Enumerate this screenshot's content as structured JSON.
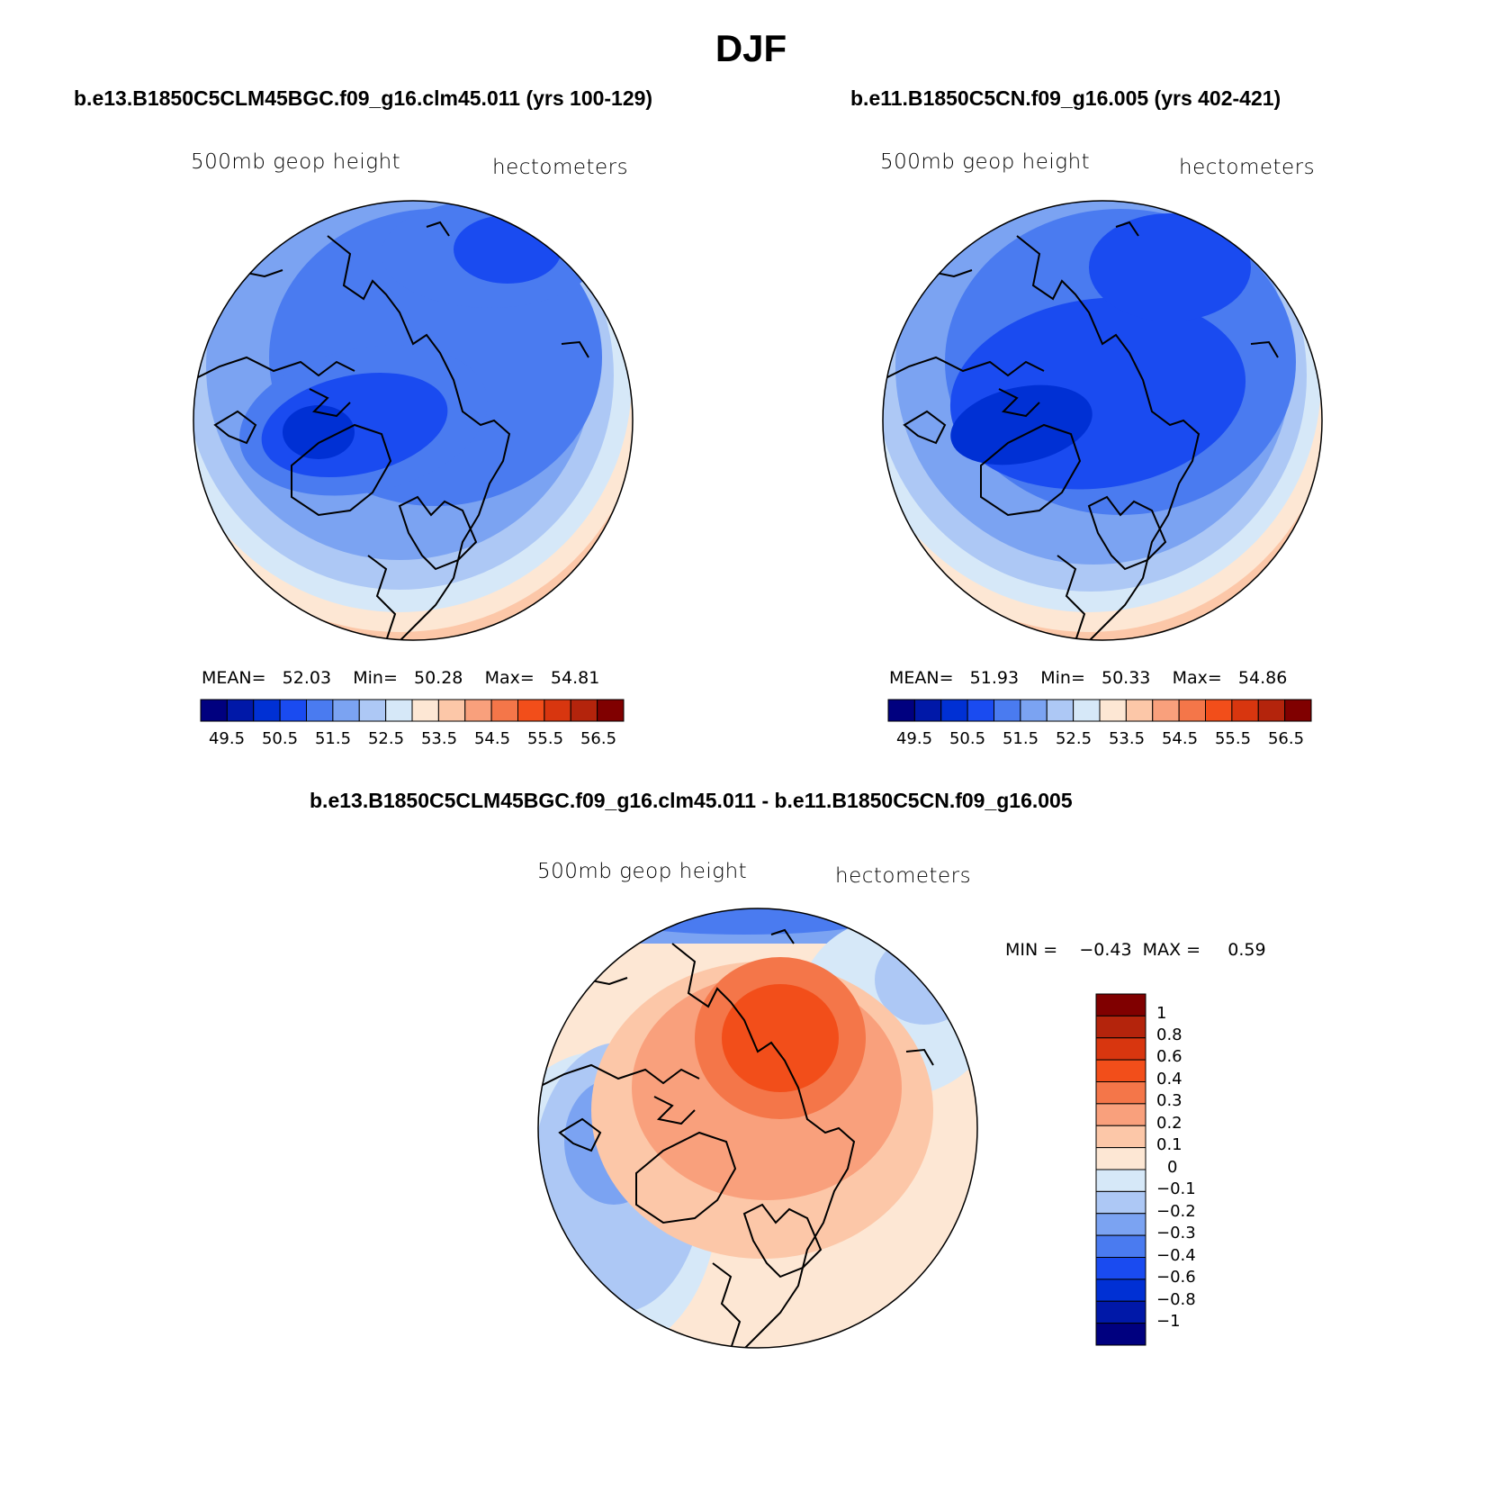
{
  "title": "DJF",
  "panels": [
    {
      "title": "b.e13.B1850C5CLM45BGC.f09_g16.clm45.011 (yrs 100-129)",
      "variable": "500mb geop height",
      "units": "hectometers",
      "stats": {
        "mean_label": "MEAN=",
        "mean": "52.03",
        "min_label": "Min=",
        "min": "50.28",
        "max_label": "Max=",
        "max": "54.81"
      }
    },
    {
      "title": "b.e11.B1850C5CN.f09_g16.005 (yrs 402-421)",
      "variable": "500mb geop height",
      "units": "hectometers",
      "stats": {
        "mean_label": "MEAN=",
        "mean": "51.93",
        "min_label": "Min=",
        "min": "50.33",
        "max_label": "Max=",
        "max": "54.86"
      }
    },
    {
      "title": "b.e13.B1850C5CLM45BGC.f09_g16.clm45.011 - b.e11.B1850C5CN.f09_g16.005",
      "variable": "500mb geop height",
      "units": "hectometers",
      "stats": {
        "min_label": "MIN =",
        "min": "−0.43",
        "max_label": "MAX =",
        "max": "0.59"
      }
    }
  ],
  "colorbar_main": {
    "colors": [
      "#00007f",
      "#0018a8",
      "#0030d4",
      "#1a4bf0",
      "#4a7bf0",
      "#7ba3f2",
      "#adc8f5",
      "#d6e8f8",
      "#fde7d4",
      "#fcc7a8",
      "#f9a07c",
      "#f47649",
      "#f24e1a",
      "#d8360f",
      "#b4240c",
      "#800000"
    ],
    "labels": [
      "49.5",
      "50.5",
      "51.5",
      "52.5",
      "53.5",
      "54.5",
      "55.5",
      "56.5"
    ]
  },
  "colorbar_diff": {
    "colors": [
      "#00007f",
      "#0018a8",
      "#0030d4",
      "#1a4bf0",
      "#4a7bf0",
      "#7ba3f2",
      "#adc8f5",
      "#d6e8f8",
      "#fde7d4",
      "#fcc7a8",
      "#f9a07c",
      "#f47649",
      "#f24e1a",
      "#d8360f",
      "#b4240c",
      "#800000"
    ],
    "labels": [
      "1",
      "0.8",
      "0.6",
      "0.4",
      "0.3",
      "0.2",
      "0.1",
      "0",
      "−0.1",
      "−0.2",
      "−0.3",
      "−0.4",
      "−0.6",
      "−0.8",
      "−1"
    ]
  }
}
